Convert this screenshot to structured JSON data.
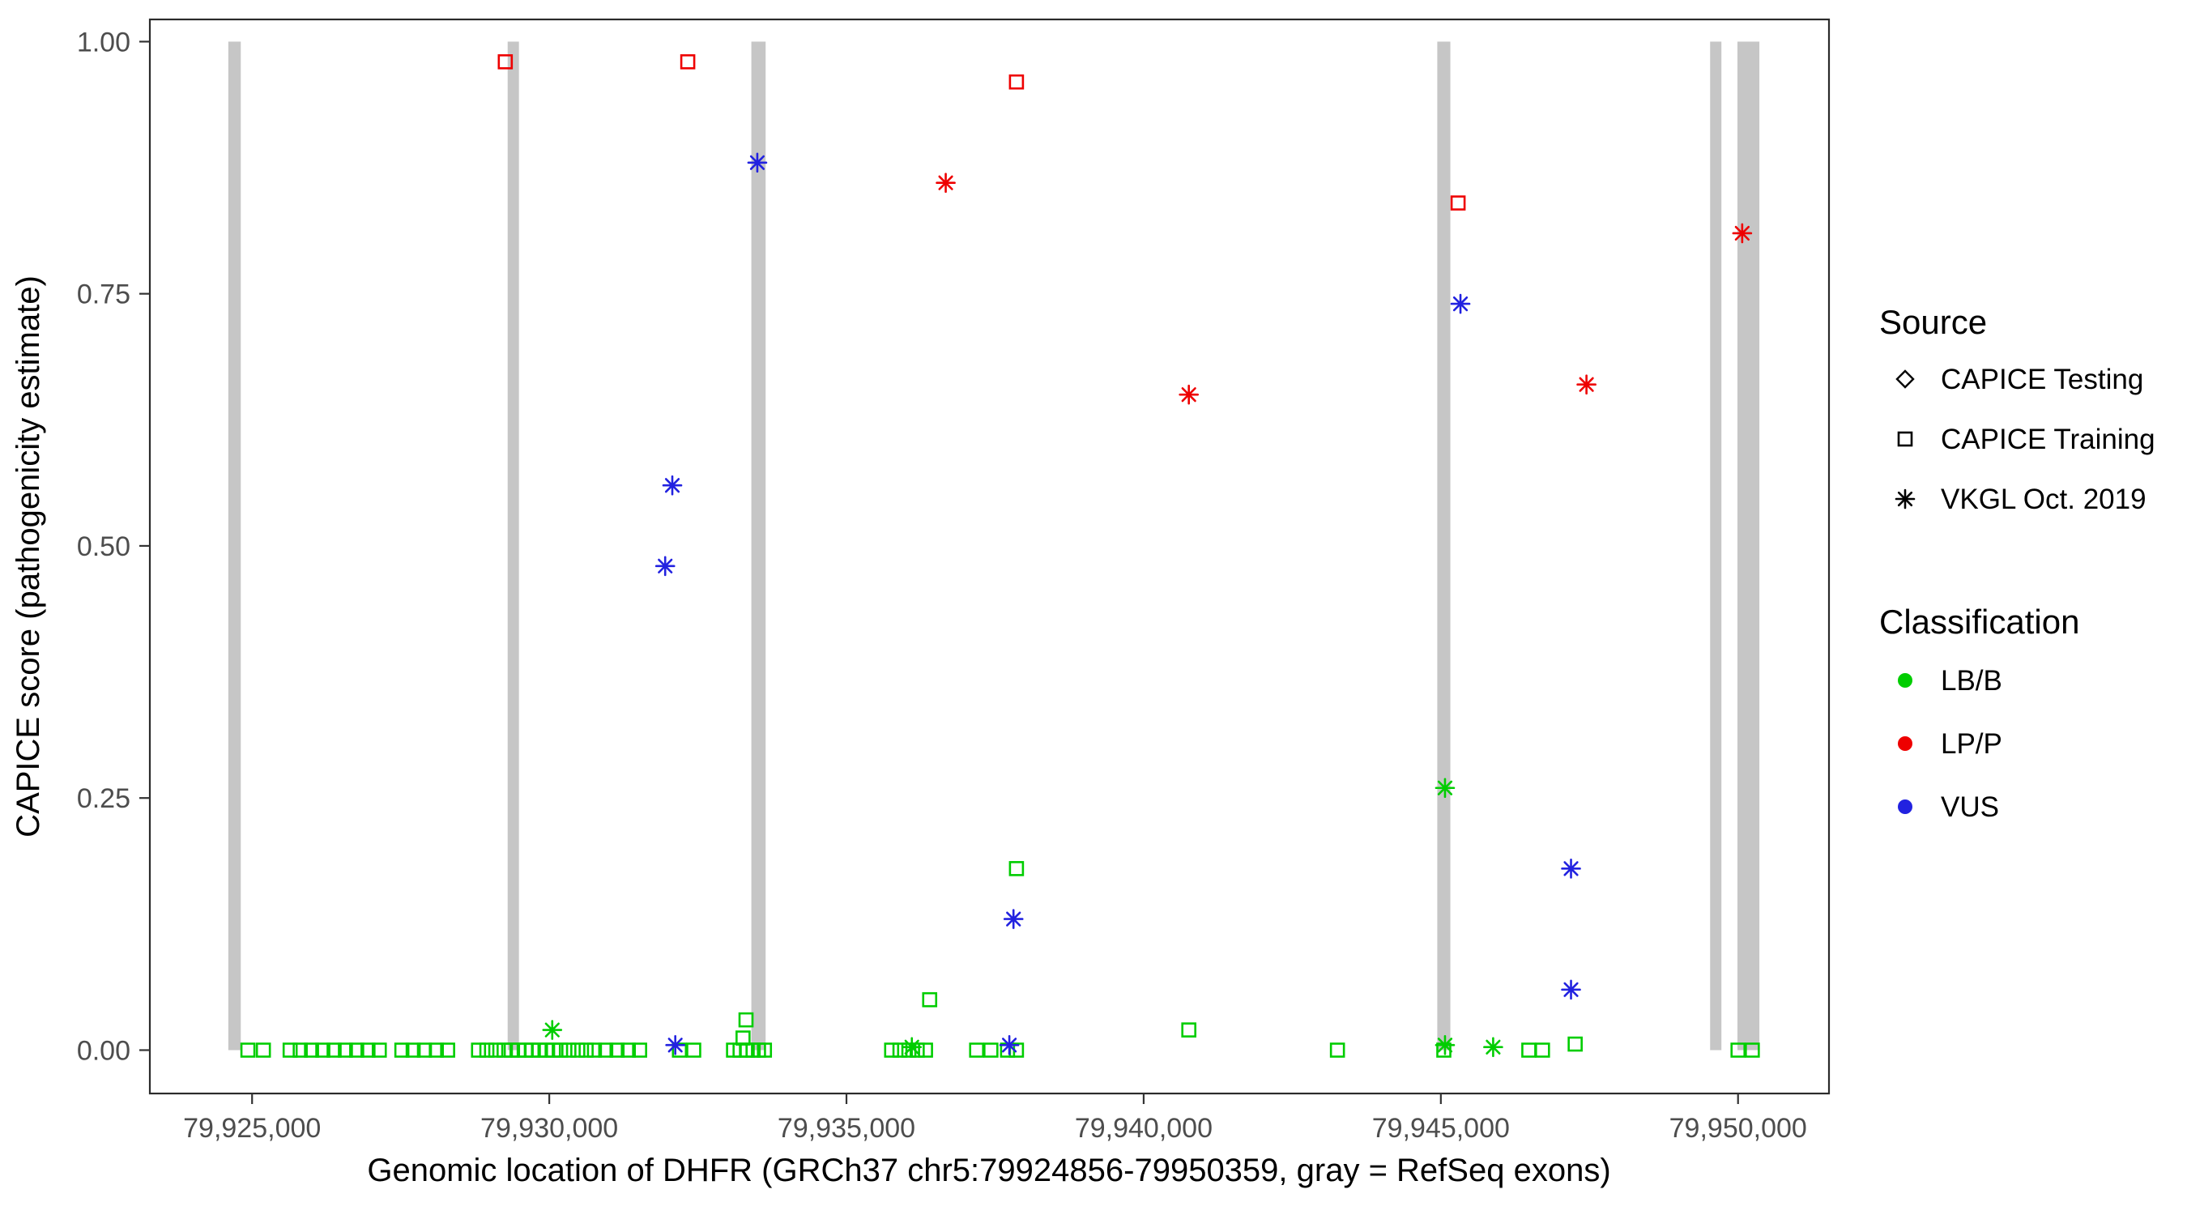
{
  "chart_data": {
    "type": "scatter",
    "title": "",
    "xlabel": "Genomic location of DHFR (GRCh37 chr5:79924856-79950359, gray = RefSeq exons)",
    "ylabel": "CAPICE score (pathogenicity estimate)",
    "xlim": [
      79923280,
      79951530
    ],
    "ylim": [
      -0.043,
      1.022
    ],
    "x_ticks": [
      79925000,
      79930000,
      79935000,
      79940000,
      79945000,
      79950000
    ],
    "x_tick_labels": [
      "79,925,000",
      "79,930,000",
      "79,935,000",
      "79,940,000",
      "79,945,000",
      "79,950,000"
    ],
    "y_ticks": [
      0,
      0.25,
      0.5,
      0.75,
      1.0
    ],
    "y_tick_labels": [
      "0.00",
      "0.25",
      "0.50",
      "0.75",
      "1.00"
    ],
    "grid": "off",
    "legend_position": "right",
    "exon_color": "#c6c6c6",
    "exons": [
      [
        79924600,
        79924810
      ],
      [
        79929300,
        79929490
      ],
      [
        79933400,
        79933640
      ],
      [
        79944940,
        79945160
      ],
      [
        79949530,
        79949720
      ],
      [
        79949990,
        79950359
      ]
    ],
    "series": [
      {
        "name": "CAPICE Training LB/B",
        "source": "CAPICE Training",
        "classification": "LB/B",
        "marker": "square",
        "color": "#00cd00",
        "points": [
          [
            79924930,
            0
          ],
          [
            79925190,
            0
          ],
          [
            79925640,
            0
          ],
          [
            79925810,
            0
          ],
          [
            79926000,
            0
          ],
          [
            79926190,
            0
          ],
          [
            79926380,
            0
          ],
          [
            79926570,
            0
          ],
          [
            79926760,
            0
          ],
          [
            79926950,
            0
          ],
          [
            79927140,
            0
          ],
          [
            79927520,
            0
          ],
          [
            79927710,
            0
          ],
          [
            79927900,
            0
          ],
          [
            79928100,
            0
          ],
          [
            79928290,
            0
          ],
          [
            79928810,
            0
          ],
          [
            79928950,
            0
          ],
          [
            79929100,
            0
          ],
          [
            79929240,
            0
          ],
          [
            79929360,
            0
          ],
          [
            79929480,
            0
          ],
          [
            79929600,
            0
          ],
          [
            79929710,
            0
          ],
          [
            79929830,
            0
          ],
          [
            79929950,
            0
          ],
          [
            79930070,
            0
          ],
          [
            79930190,
            0
          ],
          [
            79930330,
            0
          ],
          [
            79930480,
            0
          ],
          [
            79930620,
            0
          ],
          [
            79930760,
            0
          ],
          [
            79930950,
            0
          ],
          [
            79931140,
            0
          ],
          [
            79931330,
            0
          ],
          [
            79931520,
            0
          ],
          [
            79932190,
            0
          ],
          [
            79932430,
            0
          ],
          [
            79933100,
            0
          ],
          [
            79933210,
            0
          ],
          [
            79933260,
            0.012
          ],
          [
            79933310,
            0.03
          ],
          [
            79933330,
            0
          ],
          [
            79933430,
            0
          ],
          [
            79933520,
            0
          ],
          [
            79933620,
            0
          ],
          [
            79935760,
            0
          ],
          [
            79935900,
            0
          ],
          [
            79936050,
            0
          ],
          [
            79936190,
            0
          ],
          [
            79936330,
            0
          ],
          [
            79936400,
            0.05
          ],
          [
            79937190,
            0
          ],
          [
            79937430,
            0
          ],
          [
            79937710,
            0
          ],
          [
            79937860,
            0
          ],
          [
            79937860,
            0.18
          ],
          [
            79940760,
            0.02
          ],
          [
            79943260,
            0
          ],
          [
            79945050,
            0
          ],
          [
            79946480,
            0
          ],
          [
            79946710,
            0
          ],
          [
            79947260,
            0.006
          ],
          [
            79950000,
            0
          ],
          [
            79950240,
            0
          ]
        ]
      },
      {
        "name": "CAPICE Training LP/P",
        "source": "CAPICE Training",
        "classification": "LP/P",
        "marker": "square",
        "color": "#ee0000",
        "points": [
          [
            79929260,
            0.98
          ],
          [
            79932330,
            0.98
          ],
          [
            79937860,
            0.96
          ],
          [
            79945290,
            0.84
          ]
        ]
      },
      {
        "name": "VKGL Oct. 2019 LB/B",
        "source": "VKGL Oct. 2019",
        "classification": "LB/B",
        "marker": "asterisk",
        "color": "#00cd00",
        "points": [
          [
            79930050,
            0.02
          ],
          [
            79936100,
            0.003
          ],
          [
            79945070,
            0.26
          ],
          [
            79945070,
            0.005
          ],
          [
            79945880,
            0.003
          ]
        ]
      },
      {
        "name": "VKGL Oct. 2019 VUS",
        "source": "VKGL Oct. 2019",
        "classification": "VUS",
        "marker": "asterisk",
        "color": "#2222e0",
        "points": [
          [
            79933500,
            0.88
          ],
          [
            79932070,
            0.56
          ],
          [
            79931950,
            0.48
          ],
          [
            79945330,
            0.74
          ],
          [
            79947190,
            0.18
          ],
          [
            79947190,
            0.06
          ],
          [
            79937810,
            0.13
          ],
          [
            79932120,
            0.005
          ],
          [
            79937740,
            0.005
          ]
        ]
      },
      {
        "name": "VKGL Oct. 2019 LP/P",
        "source": "VKGL Oct. 2019",
        "classification": "LP/P",
        "marker": "asterisk",
        "color": "#ee0000",
        "points": [
          [
            79936670,
            0.86
          ],
          [
            79940760,
            0.65
          ],
          [
            79947450,
            0.66
          ],
          [
            79950070,
            0.81
          ]
        ]
      }
    ],
    "legend": {
      "source": {
        "title": "Source",
        "items": [
          {
            "label": "CAPICE Testing",
            "marker": "diamond"
          },
          {
            "label": "CAPICE Training",
            "marker": "square"
          },
          {
            "label": "VKGL Oct. 2019",
            "marker": "asterisk"
          }
        ]
      },
      "classification": {
        "title": "Classification",
        "items": [
          {
            "label": "LB/B",
            "color": "#00cd00"
          },
          {
            "label": "LP/P",
            "color": "#ee0000"
          },
          {
            "label": "VUS",
            "color": "#2222e0"
          }
        ]
      }
    }
  }
}
